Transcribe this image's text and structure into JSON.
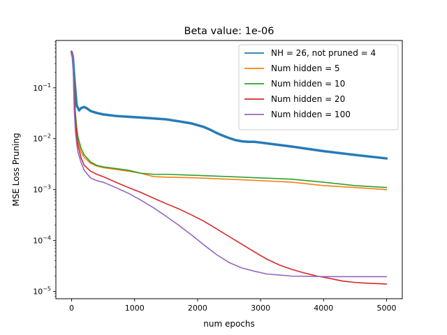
{
  "chart_data": {
    "type": "line",
    "title": "Beta value: 1e-06",
    "xlabel": "num epochs",
    "ylabel": "MSE Loss Pruning",
    "xlim": [
      -250,
      5250
    ],
    "ylim": [
      7.2e-06,
      0.85
    ],
    "yscale": "log",
    "grid": false,
    "legend_position": "top-right",
    "x_ticks": [
      {
        "value": 0,
        "label": "0"
      },
      {
        "value": 1000,
        "label": "1000"
      },
      {
        "value": 2000,
        "label": "2000"
      },
      {
        "value": 3000,
        "label": "3000"
      },
      {
        "value": 4000,
        "label": "4000"
      },
      {
        "value": 5000,
        "label": "5000"
      }
    ],
    "y_ticks": [
      {
        "value": 1e-05,
        "base": "10",
        "exp": "−5"
      },
      {
        "value": 0.0001,
        "base": "10",
        "exp": "−4"
      },
      {
        "value": 0.001,
        "base": "10",
        "exp": "−3"
      },
      {
        "value": 0.01,
        "base": "10",
        "exp": "−2"
      },
      {
        "value": 0.1,
        "base": "10",
        "exp": "−1"
      }
    ],
    "series": [
      {
        "name": "NH = 26, not pruned = 4",
        "color": "#1f77b4",
        "band": true,
        "x": [
          0,
          20,
          50,
          80,
          120,
          150,
          200,
          250,
          300,
          400,
          500,
          700,
          900,
          1100,
          1300,
          1500,
          1700,
          1900,
          2100,
          2200,
          2300,
          2400,
          2500,
          2600,
          2700,
          2800,
          2900,
          3000,
          3500,
          4000,
          4500,
          5000
        ],
        "y": [
          0.5,
          0.4,
          0.12,
          0.045,
          0.036,
          0.04,
          0.042,
          0.039,
          0.035,
          0.032,
          0.03,
          0.028,
          0.027,
          0.026,
          0.025,
          0.024,
          0.022,
          0.02,
          0.017,
          0.015,
          0.013,
          0.0115,
          0.0103,
          0.0094,
          0.0089,
          0.0087,
          0.0087,
          0.0084,
          0.007,
          0.0057,
          0.0048,
          0.0041
        ]
      },
      {
        "name": "Num hidden = 5",
        "color": "#ff7f0e",
        "x": [
          0,
          20,
          40,
          60,
          80,
          100,
          150,
          200,
          300,
          400,
          500,
          700,
          900,
          1100,
          1300,
          1500,
          2000,
          2500,
          3000,
          3500,
          4000,
          4500,
          5000
        ],
        "y": [
          0.52,
          0.43,
          0.09,
          0.03,
          0.015,
          0.009,
          0.0055,
          0.0043,
          0.0033,
          0.0029,
          0.0027,
          0.0025,
          0.0023,
          0.0021,
          0.0018,
          0.00176,
          0.0017,
          0.0016,
          0.0015,
          0.0014,
          0.0012,
          0.0011,
          0.001
        ]
      },
      {
        "name": "Num hidden = 10",
        "color": "#2ca02c",
        "x": [
          0,
          20,
          40,
          60,
          80,
          100,
          150,
          200,
          300,
          400,
          500,
          700,
          900,
          1100,
          1300,
          1500,
          2000,
          2500,
          3000,
          3500,
          4000,
          4500,
          5000
        ],
        "y": [
          0.51,
          0.42,
          0.085,
          0.032,
          0.017,
          0.011,
          0.0065,
          0.0048,
          0.0035,
          0.003,
          0.0028,
          0.0026,
          0.0024,
          0.0021,
          0.002,
          0.002,
          0.0019,
          0.0018,
          0.0017,
          0.0016,
          0.0014,
          0.0012,
          0.0011
        ]
      },
      {
        "name": "Num hidden = 20",
        "color": "#d62728",
        "x": [
          0,
          20,
          40,
          60,
          80,
          100,
          150,
          200,
          300,
          400,
          500,
          700,
          900,
          1100,
          1300,
          1500,
          1700,
          1900,
          2100,
          2300,
          2500,
          2700,
          2900,
          3100,
          3300,
          3500,
          3700,
          3900,
          4100,
          4300,
          4500,
          4700,
          5000
        ],
        "y": [
          0.53,
          0.44,
          0.07,
          0.025,
          0.012,
          0.0075,
          0.0042,
          0.003,
          0.0023,
          0.002,
          0.0018,
          0.0014,
          0.0011,
          0.00088,
          0.00068,
          0.00053,
          0.00042,
          0.00032,
          0.00024,
          0.00017,
          0.00012,
          8.5e-05,
          6e-05,
          4.3e-05,
          3.3e-05,
          2.7e-05,
          2.3e-05,
          2e-05,
          1.8e-05,
          1.6e-05,
          1.5e-05,
          1.45e-05,
          1.4e-05
        ]
      },
      {
        "name": "Num hidden = 100",
        "color": "#9467bd",
        "x": [
          0,
          20,
          40,
          60,
          80,
          100,
          150,
          200,
          300,
          400,
          500,
          700,
          900,
          1100,
          1300,
          1500,
          1700,
          1900,
          2100,
          2300,
          2500,
          2700,
          2900,
          3100,
          3300,
          3500,
          3800,
          4000,
          4500,
          5000
        ],
        "y": [
          0.5,
          0.4,
          0.04,
          0.014,
          0.008,
          0.0055,
          0.0034,
          0.0024,
          0.0017,
          0.0015,
          0.0014,
          0.0011,
          0.00085,
          0.00062,
          0.00044,
          0.0003,
          0.0002,
          0.00013,
          8.2e-05,
          5.3e-05,
          3.7e-05,
          2.9e-05,
          2.5e-05,
          2.2e-05,
          2.1e-05,
          2e-05,
          1.98e-05,
          1.96e-05,
          1.95e-05,
          1.95e-05
        ]
      }
    ]
  }
}
